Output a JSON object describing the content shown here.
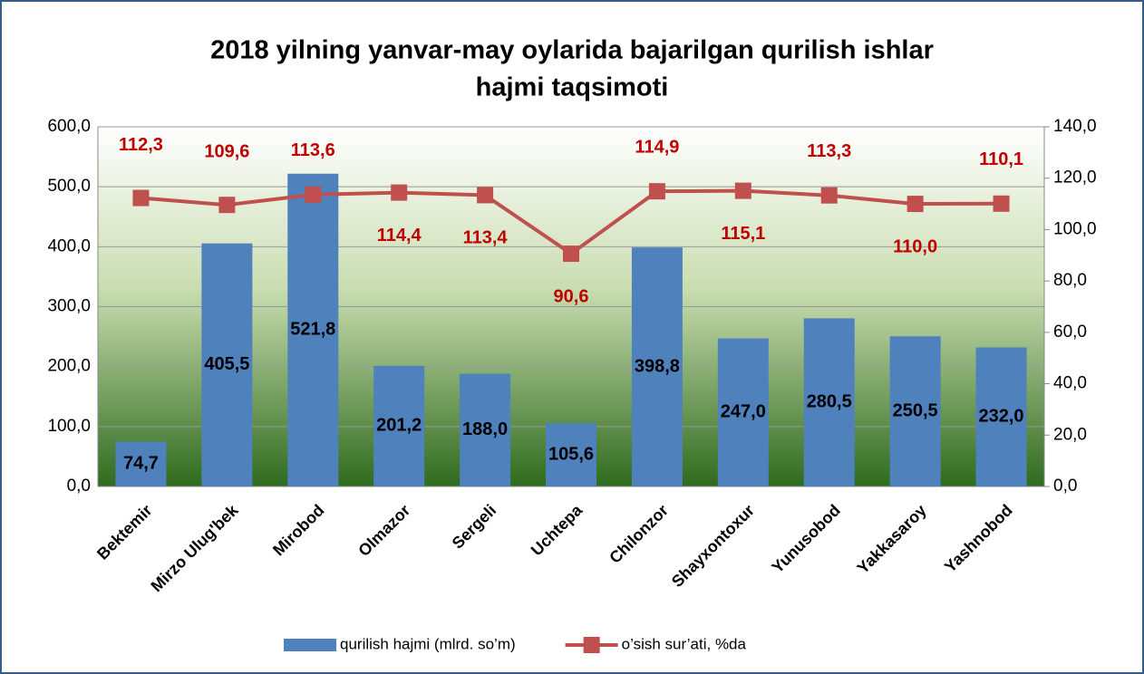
{
  "chart_data": {
    "type": "bar",
    "title": [
      "2018 yilning yanvar-may oylarida bajarilgan qurilish ishlar",
      "hajmi taqsimoti"
    ],
    "categories": [
      "Bektemir",
      "Mirzo Ulug'bek",
      "Mirobod",
      "Olmazor",
      "Sergeli",
      "Uchtepa",
      "Chilonzor",
      "Shayxontoxur",
      "Yunusobod",
      "Yakkasaroy",
      "Yashnobod"
    ],
    "series": [
      {
        "name": "qurilish hajmi (mlrd. so’m)",
        "type": "bar",
        "color": "#4f81bd",
        "values": [
          74.7,
          405.5,
          521.8,
          201.2,
          188.0,
          105.6,
          398.8,
          247.0,
          280.5,
          250.5,
          232.0
        ],
        "value_labels": [
          "74,7",
          "405,5",
          "521,8",
          "201,2",
          "188,0",
          "105,6",
          "398,8",
          "247,0",
          "280,5",
          "250,5",
          "232,0"
        ]
      },
      {
        "name": "o’sish sur’ati, %da",
        "type": "line",
        "axis": "y2",
        "color": "#c0504d",
        "values": [
          112.3,
          109.6,
          113.6,
          114.4,
          113.4,
          90.6,
          114.9,
          115.1,
          113.3,
          110.0,
          110.1
        ],
        "value_labels": [
          "112,3",
          "109,6",
          "113,6",
          "114,4",
          "113,4",
          "90,6",
          "114,9",
          "115,1",
          "113,3",
          "110,0",
          "110,1"
        ]
      }
    ],
    "ylim": [
      0,
      600
    ],
    "yticks": [
      {
        "value": 0,
        "label": "0,0"
      },
      {
        "value": 100,
        "label": "100,0"
      },
      {
        "value": 200,
        "label": "200,0"
      },
      {
        "value": 300,
        "label": "300,0"
      },
      {
        "value": 400,
        "label": "400,0"
      },
      {
        "value": 500,
        "label": "500,0"
      },
      {
        "value": 600,
        "label": "600,0"
      }
    ],
    "y2lim": [
      0,
      140
    ],
    "y2ticks": [
      {
        "value": 0,
        "label": "0,0"
      },
      {
        "value": 20,
        "label": "20,0"
      },
      {
        "value": 40,
        "label": "40,0"
      },
      {
        "value": 60,
        "label": "60,0"
      },
      {
        "value": 80,
        "label": "80,0"
      },
      {
        "value": 100,
        "label": "100,0"
      },
      {
        "value": 120,
        "label": "120,0"
      },
      {
        "value": 140,
        "label": "140,0"
      }
    ],
    "grid": true,
    "legend": "bottom"
  }
}
